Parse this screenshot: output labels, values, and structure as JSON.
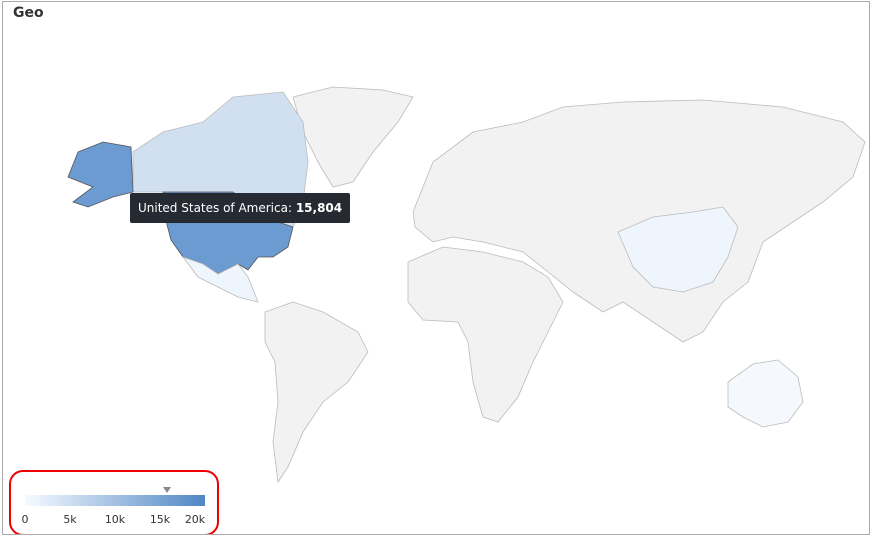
{
  "title": "Geo",
  "tooltip": {
    "country": "United States of America",
    "value": "15,804"
  },
  "legend": {
    "ticks": [
      "0",
      "5k",
      "10k",
      "15k",
      "20k"
    ],
    "min": 0,
    "max": 20000,
    "marker_value": 15804,
    "color_low": "#f7fbff",
    "color_high": "#4f87c5"
  },
  "colors": {
    "no_data": "#f2f2f2",
    "border": "#c8c8c8",
    "usa": "#6b9bd1",
    "canada": "#d0e0f1",
    "light": "#eef5fd"
  }
}
